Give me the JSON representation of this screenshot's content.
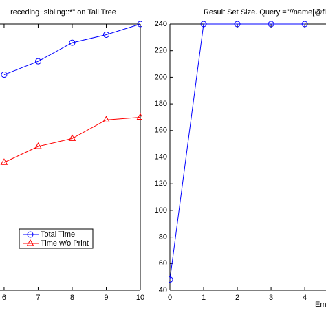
{
  "chart_data": [
    {
      "type": "line",
      "title": "receding−sibling::*\" on Tall Tree",
      "x": [
        6,
        7,
        8,
        9,
        10
      ],
      "xlim": [
        5.88,
        10
      ],
      "xticks": [
        6,
        7,
        8,
        9,
        10
      ],
      "ylim": [
        0,
        1
      ],
      "series": [
        {
          "name": "Total Time",
          "color": "#0000ff",
          "marker": "circle",
          "values": [
            0.81,
            0.86,
            0.93,
            0.96,
            1.0
          ]
        },
        {
          "name": "Time w/o Print",
          "color": "#ff0000",
          "marker": "triangle",
          "values": [
            0.48,
            0.54,
            0.57,
            0.64,
            0.65
          ]
        }
      ],
      "legend": "lower left"
    },
    {
      "type": "line",
      "title": "Result Set Size. Query =\"//name[@fi",
      "xlabel": "Em",
      "x": [
        0,
        1,
        2,
        3,
        4
      ],
      "xlim": [
        0,
        4.63
      ],
      "xticks": [
        0,
        1,
        2,
        3,
        4
      ],
      "ylim": [
        40,
        240
      ],
      "yticks": [
        40,
        60,
        80,
        100,
        120,
        140,
        160,
        180,
        200,
        220,
        240
      ],
      "series": [
        {
          "color": "#0000ff",
          "marker": "circle",
          "values": [
            48,
            240,
            240,
            240,
            240
          ]
        }
      ]
    }
  ]
}
